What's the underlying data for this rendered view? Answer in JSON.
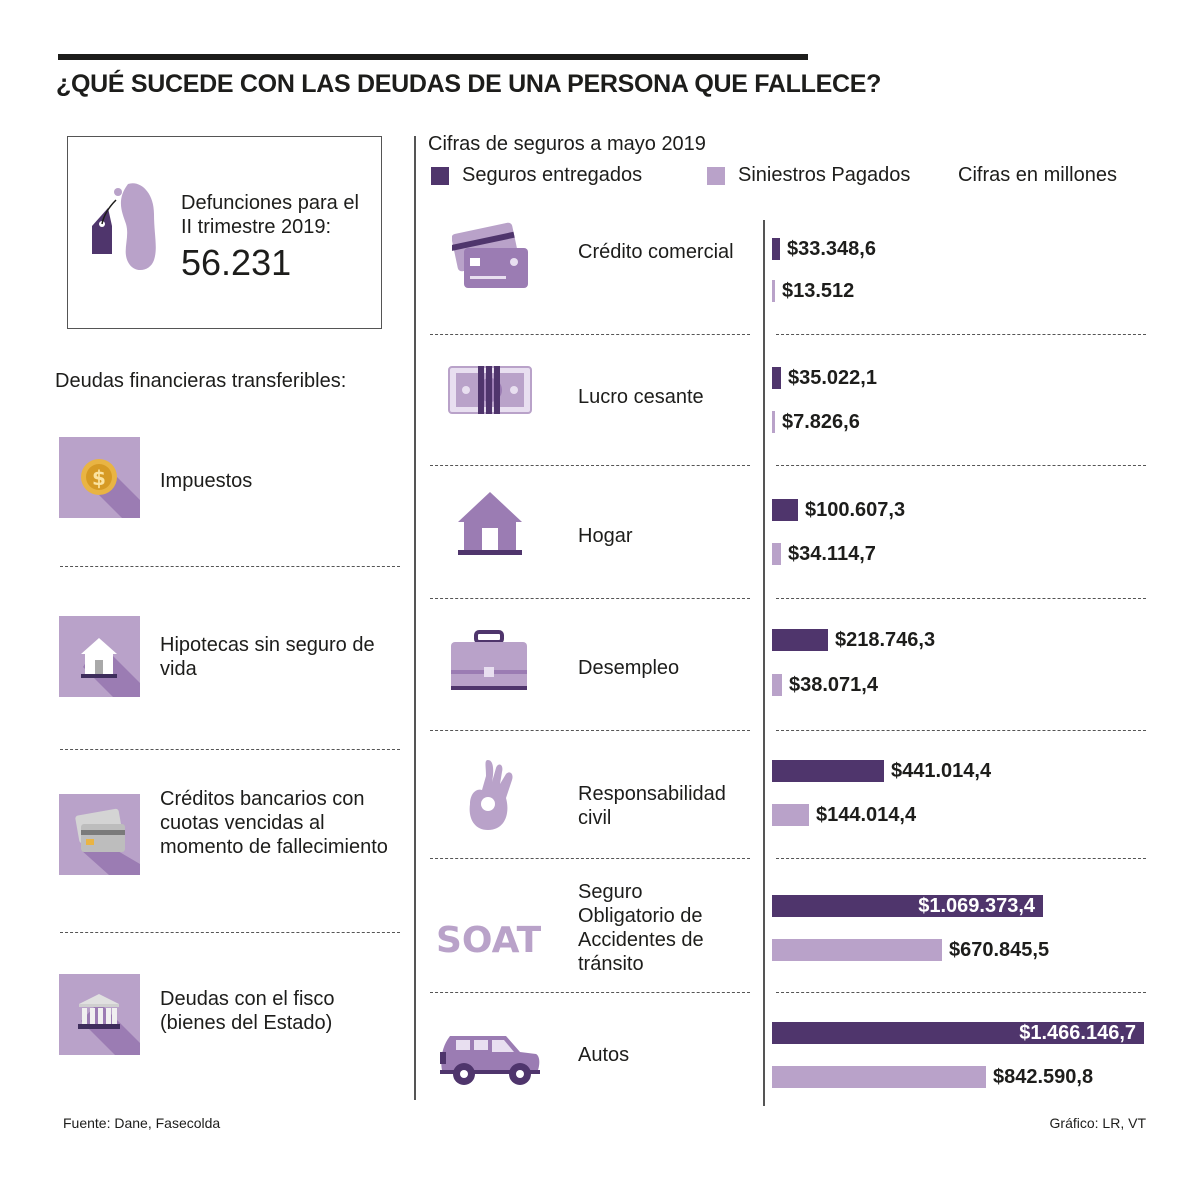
{
  "title": "¿QUÉ SUCEDE CON LAS DEUDAS DE UNA PERSONA QUE FALLECE?",
  "stat": {
    "label": "Defunciones para el II trimestre 2019:",
    "value": "56.231"
  },
  "left_heading": "Deudas financieras transferibles:",
  "debts": [
    {
      "label": "Impuestos",
      "icon": "coin-icon"
    },
    {
      "label": "Hipotecas sin seguro de vida",
      "icon": "house-icon"
    },
    {
      "label": "Créditos bancarios con cuotas vencidas al momento de fallecimiento",
      "icon": "credit-card-icon"
    },
    {
      "label": "Deudas con el fisco (bienes del Estado)",
      "icon": "bank-icon"
    }
  ],
  "chart_data": {
    "type": "bar",
    "orientation": "horizontal",
    "title": "Cifras de seguros a mayo 2019",
    "units_note": "Cifras en millones",
    "legend_position": "top",
    "categories": [
      "Crédito comercial",
      "Lucro cesante",
      "Hogar",
      "Desempleo",
      "Responsabilidad civil",
      "Seguro Obligatorio de Accidentes de tránsito",
      "Autos"
    ],
    "category_icons": [
      "credit-card-icon",
      "money-icon",
      "house-icon",
      "briefcase-icon",
      "ok-hand-icon",
      "soat-logo-icon",
      "car-icon"
    ],
    "series": [
      {
        "name": "Seguros entregados",
        "color": "#4f356c",
        "values": [
          33348.6,
          35022.1,
          100607.3,
          218746.3,
          441014.4,
          1069373.4,
          1466146.7
        ],
        "labels": [
          "$33.348,6",
          "$35.022,1",
          "$100.607,3",
          "$218.746,3",
          "$441.014,4",
          "$1.069.373,4",
          "$1.466.146,7"
        ]
      },
      {
        "name": "Siniestros Pagados",
        "color": "#b9a2c9",
        "values": [
          13512,
          7826.6,
          34114.7,
          38071.4,
          144014.4,
          670845.5,
          842590.8
        ],
        "labels": [
          "$13.512",
          "$7.826,6",
          "$34.114,7",
          "$38.071,4",
          "$144.014,4",
          "$670.845,5",
          "$842.590,8"
        ]
      }
    ],
    "xlim": [
      0,
      1466146.7
    ]
  },
  "soat_logo_text": "SOAT",
  "footer": {
    "source": "Fuente: Dane, Fasecolda",
    "credit": "Gráfico: LR, VT"
  }
}
